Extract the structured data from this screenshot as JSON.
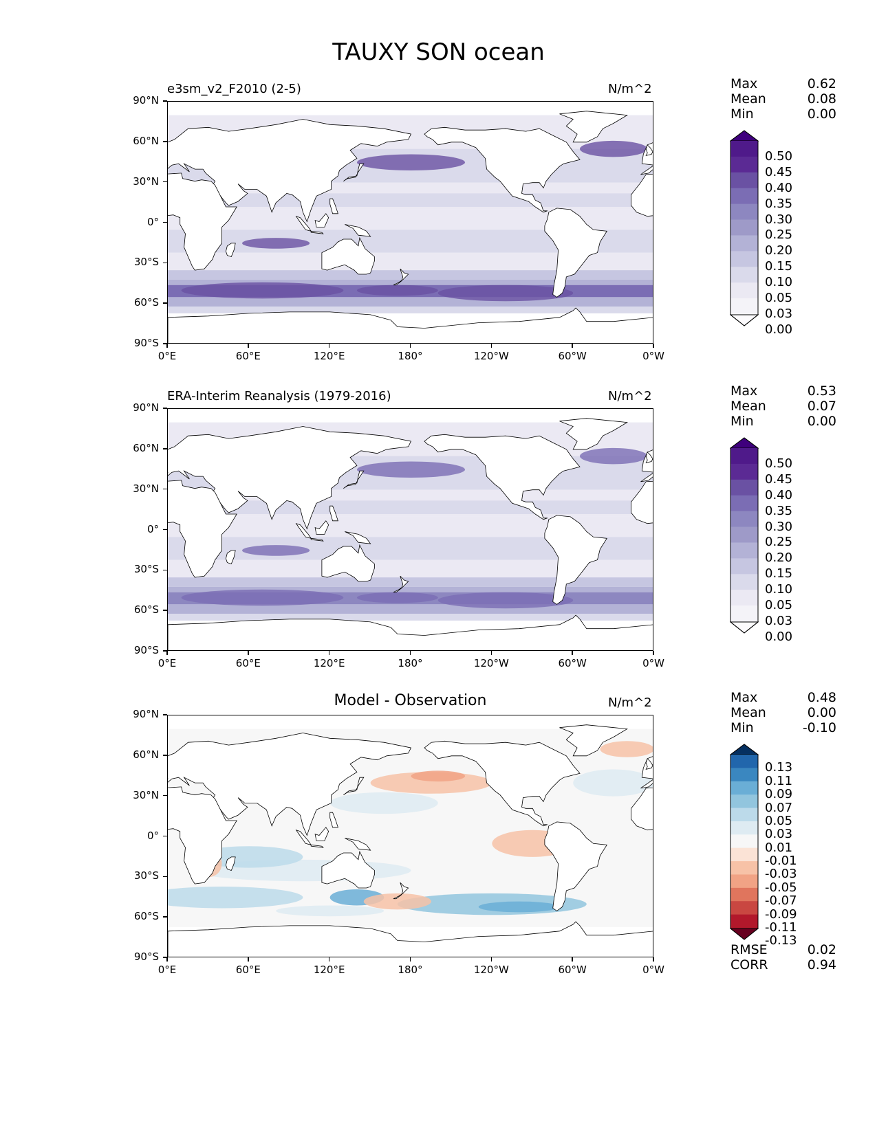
{
  "suptitle": "TAUXY SON ocean",
  "units": "N/m^2",
  "colors": {
    "land": "#ffffff",
    "coast": "#000000"
  },
  "lat_ticks": [
    "90°N",
    "60°N",
    "30°N",
    "0°",
    "30°S",
    "60°S",
    "90°S"
  ],
  "lon_ticks": [
    "0°E",
    "60°E",
    "120°E",
    "180°",
    "120°W",
    "60°W",
    "0°W"
  ],
  "panels": [
    {
      "title": "e3sm_v2_F2010 (2-5)",
      "title_style": "left",
      "stats": [
        {
          "label": "Max",
          "value": "0.62"
        },
        {
          "label": "Mean",
          "value": "0.08"
        },
        {
          "label": "Min",
          "value": "0.00"
        }
      ],
      "colorbar": {
        "labels": [
          "0.50",
          "0.45",
          "0.40",
          "0.35",
          "0.30",
          "0.25",
          "0.20",
          "0.15",
          "0.10",
          "0.05",
          "0.03",
          "0.00"
        ],
        "colors": [
          "#3f007d",
          "#4f1a8a",
          "#5b2a94",
          "#6a51a3",
          "#7b6db4",
          "#8d87c0",
          "#9e9ac8",
          "#b3b2d6",
          "#c6c6e1",
          "#dadaeb",
          "#ebe9f3",
          "#f4f3f8",
          "#fcfbfd"
        ]
      }
    },
    {
      "title": "ERA-Interim Reanalysis (1979-2016)",
      "title_style": "left",
      "stats": [
        {
          "label": "Max",
          "value": "0.53"
        },
        {
          "label": "Mean",
          "value": "0.07"
        },
        {
          "label": "Min",
          "value": "0.00"
        }
      ],
      "colorbar": {
        "labels": [
          "0.50",
          "0.45",
          "0.40",
          "0.35",
          "0.30",
          "0.25",
          "0.20",
          "0.15",
          "0.10",
          "0.05",
          "0.03",
          "0.00"
        ],
        "colors": [
          "#3f007d",
          "#4f1a8a",
          "#5b2a94",
          "#6a51a3",
          "#7b6db4",
          "#8d87c0",
          "#9e9ac8",
          "#b3b2d6",
          "#c6c6e1",
          "#dadaeb",
          "#ebe9f3",
          "#f4f3f8",
          "#fcfbfd"
        ]
      }
    },
    {
      "title": "Model - Observation",
      "title_style": "center",
      "stats": [
        {
          "label": "Max",
          "value": "0.48"
        },
        {
          "label": "Mean",
          "value": "0.00"
        },
        {
          "label": "Min",
          "value": "-0.10"
        }
      ],
      "extra_stats": [
        {
          "label": "RMSE",
          "value": "0.02"
        },
        {
          "label": "CORR",
          "value": "0.94"
        }
      ],
      "colorbar": {
        "labels": [
          "0.13",
          "0.11",
          "0.09",
          "0.07",
          "0.05",
          "0.03",
          "0.01",
          "-0.01",
          "-0.03",
          "-0.05",
          "-0.07",
          "-0.09",
          "-0.11",
          "-0.13"
        ],
        "colors": [
          "#053061",
          "#2166ac",
          "#3a87c0",
          "#6aaed6",
          "#92c5de",
          "#bcdaea",
          "#deebf2",
          "#f7f7f7",
          "#fbe3d6",
          "#f7c2a7",
          "#f1a385",
          "#e0755d",
          "#c94741",
          "#b2182b",
          "#67001f"
        ]
      }
    }
  ]
}
